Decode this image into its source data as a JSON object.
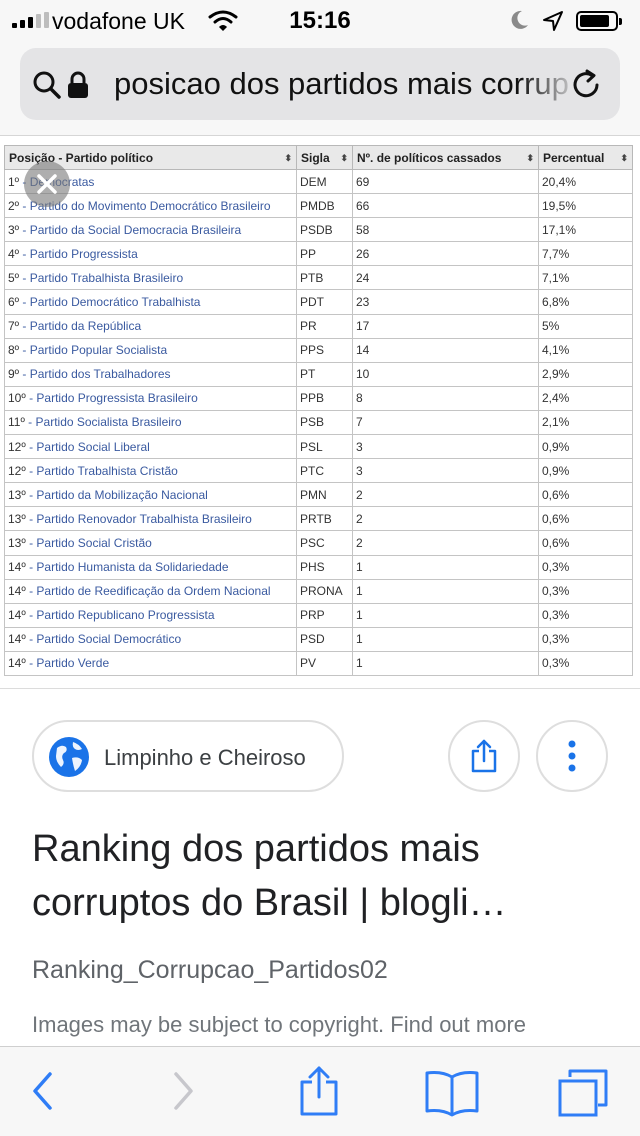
{
  "status_bar": {
    "carrier": "vodafone UK",
    "time": "15:16"
  },
  "address_bar": {
    "url_text": "posicao dos partidos mais corruptos"
  },
  "table": {
    "headers": [
      {
        "label": "Posição - Partido político",
        "sort_icon": "⬍"
      },
      {
        "label": "Sigla",
        "sort_icon": "⬍"
      },
      {
        "label": "Nº. de políticos cassados",
        "sort_icon": "⬍"
      },
      {
        "label": "Percentual",
        "sort_icon": "⬍"
      }
    ],
    "rows": [
      {
        "pos": "1º",
        "party": "Democratas",
        "sigla": "DEM",
        "count": "69",
        "pct": "20,4%"
      },
      {
        "pos": "2º",
        "party": "Partido do Movimento Democrático Brasileiro",
        "sigla": "PMDB",
        "count": "66",
        "pct": "19,5%"
      },
      {
        "pos": "3º",
        "party": "Partido da Social Democracia Brasileira",
        "sigla": "PSDB",
        "count": "58",
        "pct": "17,1%"
      },
      {
        "pos": "4º",
        "party": "Partido Progressista",
        "sigla": "PP",
        "count": "26",
        "pct": "7,7%"
      },
      {
        "pos": "5º",
        "party": "Partido Trabalhista Brasileiro",
        "sigla": "PTB",
        "count": "24",
        "pct": "7,1%"
      },
      {
        "pos": "6º",
        "party": "Partido Democrático Trabalhista",
        "sigla": "PDT",
        "count": "23",
        "pct": "6,8%"
      },
      {
        "pos": "7º",
        "party": "Partido da República",
        "sigla": "PR",
        "count": "17",
        "pct": "5%"
      },
      {
        "pos": "8º",
        "party": "Partido Popular Socialista",
        "sigla": "PPS",
        "count": "14",
        "pct": "4,1%"
      },
      {
        "pos": "9º",
        "party": "Partido dos Trabalhadores",
        "sigla": "PT",
        "count": "10",
        "pct": "2,9%"
      },
      {
        "pos": "10º",
        "party": "Partido Progressista Brasileiro",
        "sigla": "PPB",
        "count": "8",
        "pct": "2,4%"
      },
      {
        "pos": "11º",
        "party": "Partido Socialista Brasileiro",
        "sigla": "PSB",
        "count": "7",
        "pct": "2,1%"
      },
      {
        "pos": "12º",
        "party": "Partido Social Liberal",
        "sigla": "PSL",
        "count": "3",
        "pct": "0,9%"
      },
      {
        "pos": "12º",
        "party": "Partido Trabalhista Cristão",
        "sigla": "PTC",
        "count": "3",
        "pct": "0,9%"
      },
      {
        "pos": "13º",
        "party": "Partido da Mobilização Nacional",
        "sigla": "PMN",
        "count": "2",
        "pct": "0,6%"
      },
      {
        "pos": "13º",
        "party": "Partido Renovador Trabalhista Brasileiro",
        "sigla": "PRTB",
        "count": "2",
        "pct": "0,6%"
      },
      {
        "pos": "13º",
        "party": "Partido Social Cristão",
        "sigla": "PSC",
        "count": "2",
        "pct": "0,6%"
      },
      {
        "pos": "14º",
        "party": "Partido Humanista da Solidariedade",
        "sigla": "PHS",
        "count": "1",
        "pct": "0,3%"
      },
      {
        "pos": "14º",
        "party": "Partido de Reedificação da Ordem Nacional",
        "sigla": "PRONA",
        "count": "1",
        "pct": "0,3%"
      },
      {
        "pos": "14º",
        "party": "Partido Republicano Progressista",
        "sigla": "PRP",
        "count": "1",
        "pct": "0,3%"
      },
      {
        "pos": "14º",
        "party": "Partido Social Democrático",
        "sigla": "PSD",
        "count": "1",
        "pct": "0,3%"
      },
      {
        "pos": "14º",
        "party": "Partido Verde",
        "sigla": "PV",
        "count": "1",
        "pct": "0,3%"
      }
    ]
  },
  "source": {
    "name": "Limpinho e Cheiroso"
  },
  "result": {
    "title": "Ranking dos partidos mais corruptos do Brasil | blogli…",
    "filename": "Ranking_Corrupcao_Partidos02",
    "copyright": "Images may be subject to copyright. Find out more"
  },
  "colors": {
    "ios_blue": "#2f7df6",
    "google_blue": "#1a73e8"
  },
  "icons": {
    "status": [
      "signal-icon",
      "wifi-icon",
      "moon-icon",
      "location-arrow-icon",
      "battery-icon"
    ],
    "address": [
      "search-icon",
      "lock-icon",
      "reload-icon"
    ],
    "image": [
      "close-icon"
    ],
    "actions": [
      "globe-icon",
      "share-icon",
      "more-vert-icon"
    ],
    "toolbar": [
      "back-icon",
      "forward-icon",
      "share-icon",
      "bookmarks-icon",
      "tabs-icon"
    ]
  }
}
